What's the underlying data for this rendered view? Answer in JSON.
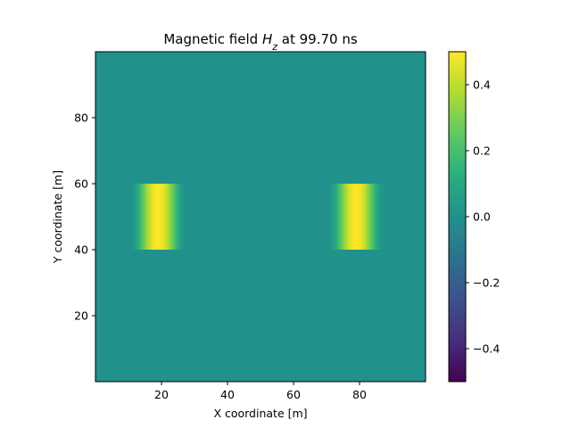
{
  "chart_data": {
    "type": "heatmap",
    "title": {
      "prefix": "Magnetic field ",
      "symbol": "H",
      "subscript": "z",
      "suffix": " at 99.70 ns"
    },
    "xlabel": "X coordinate [m]",
    "ylabel": "Y coordinate [m]",
    "xlim": [
      0,
      100
    ],
    "ylim": [
      0,
      100
    ],
    "xticks": [
      20,
      40,
      60,
      80
    ],
    "yticks": [
      20,
      40,
      60,
      80
    ],
    "xtick_labels": [
      "20",
      "40",
      "60",
      "80"
    ],
    "ytick_labels": [
      "20",
      "40",
      "60",
      "80"
    ],
    "colormap": "viridis",
    "background_value": 0.0,
    "pulse_y_range": [
      40,
      60
    ],
    "pulses": [
      {
        "center_x": 19,
        "amplitude": 0.5,
        "half_width": 9
      },
      {
        "center_x": 79,
        "amplitude": 0.5,
        "half_width": 9
      }
    ],
    "colorbar": {
      "vmin": -0.5,
      "vmax": 0.5,
      "ticks": [
        -0.4,
        -0.2,
        0.0,
        0.2,
        0.4
      ],
      "tick_labels": [
        "−0.4",
        "−0.2",
        "0.0",
        "0.2",
        "0.4"
      ]
    }
  }
}
